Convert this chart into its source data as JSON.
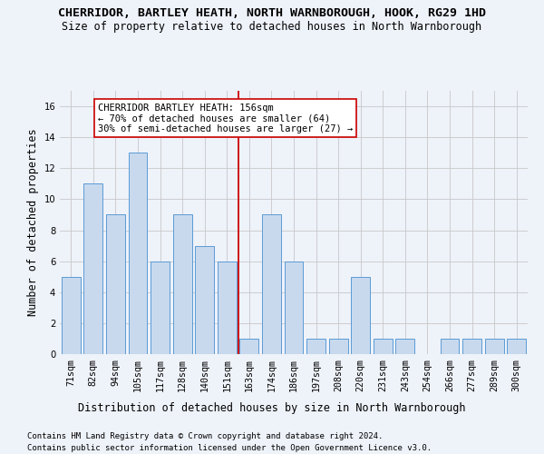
{
  "title": "CHERRIDOR, BARTLEY HEATH, NORTH WARNBOROUGH, HOOK, RG29 1HD",
  "subtitle": "Size of property relative to detached houses in North Warnborough",
  "xlabel": "Distribution of detached houses by size in North Warnborough",
  "ylabel": "Number of detached properties",
  "categories": [
    "71sqm",
    "82sqm",
    "94sqm",
    "105sqm",
    "117sqm",
    "128sqm",
    "140sqm",
    "151sqm",
    "163sqm",
    "174sqm",
    "186sqm",
    "197sqm",
    "208sqm",
    "220sqm",
    "231sqm",
    "243sqm",
    "254sqm",
    "266sqm",
    "277sqm",
    "289sqm",
    "300sqm"
  ],
  "values": [
    5,
    11,
    9,
    13,
    6,
    9,
    7,
    6,
    1,
    9,
    6,
    1,
    1,
    5,
    1,
    1,
    0,
    1,
    1,
    1,
    1
  ],
  "bar_color": "#c8d9ee",
  "bar_edge_color": "#5b9bd5",
  "bar_linewidth": 0.7,
  "grid_color": "#c8c8c8",
  "background_color": "#eef2f9",
  "vline_x": 7.5,
  "vline_color": "#cc0000",
  "annotation_text": "CHERRIDOR BARTLEY HEATH: 156sqm\n← 70% of detached houses are smaller (64)\n30% of semi-detached houses are larger (27) →",
  "annotation_box_color": "#ffffff",
  "annotation_box_edge": "#cc0000",
  "annotation_fontsize": 7.5,
  "ylim": [
    0,
    17
  ],
  "yticks": [
    0,
    2,
    4,
    6,
    8,
    10,
    12,
    14,
    16
  ],
  "footnote1": "Contains HM Land Registry data © Crown copyright and database right 2024.",
  "footnote2": "Contains public sector information licensed under the Open Government Licence v3.0.",
  "title_fontsize": 9.5,
  "subtitle_fontsize": 8.5,
  "xlabel_fontsize": 8.5,
  "ylabel_fontsize": 8.5,
  "tick_fontsize": 7.2,
  "footnote_fontsize": 6.5
}
